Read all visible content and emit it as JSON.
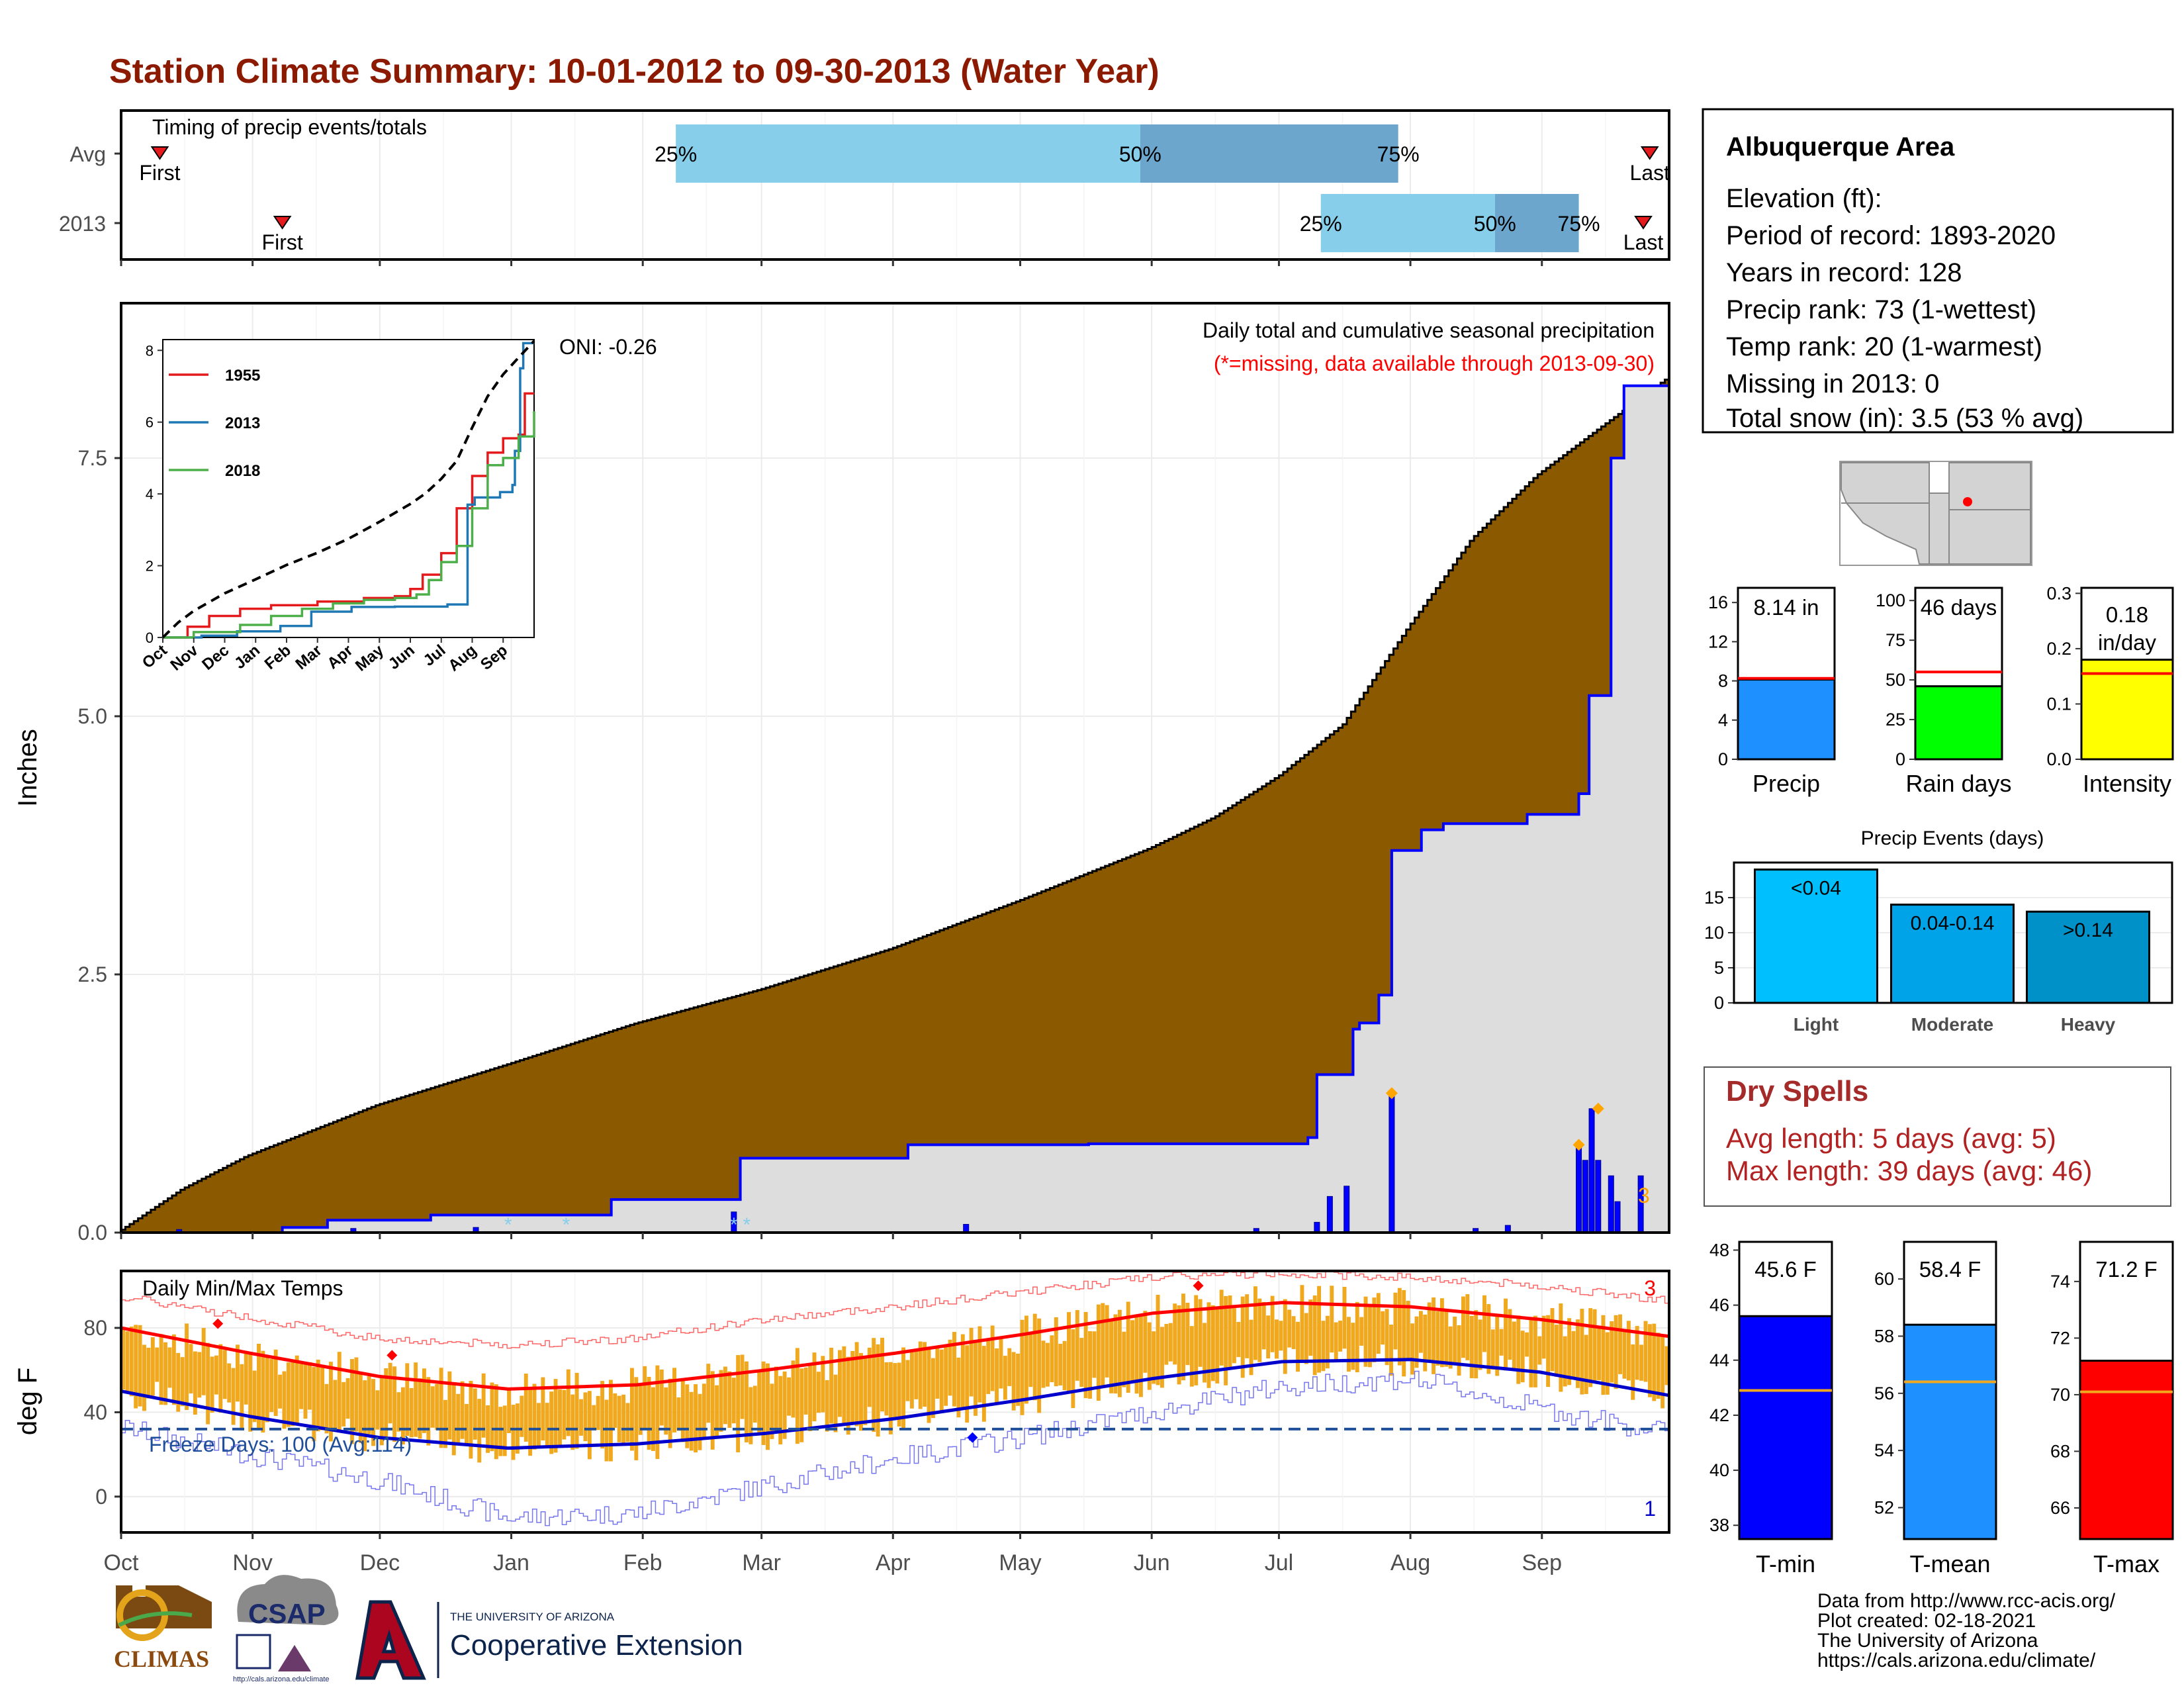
{
  "page": {
    "title": "Station Climate Summary: 10-01-2012 to 09-30-2013 (Water Year)",
    "footer": [
      "Data from http://www.rcc-acis.org/",
      "Plot created: 02-18-2021",
      "The University of Arizona",
      "https://cals.arizona.edu/climate/"
    ],
    "logos": {
      "climas": "CLIMAS",
      "csap": "CSAP",
      "ua_small": "THE UNIVERSITY OF ARIZONA",
      "ua_big": "Cooperative Extension",
      "csap_url": "http://cals.arizona.edu/climate"
    }
  },
  "chart_data": [
    {
      "type": "timing",
      "title": "Timing of precip events/totals",
      "rows": [
        {
          "label": "Avg",
          "first_month": 0.3,
          "q25_month": 4.3,
          "q50_month": 7.9,
          "q75_month": 9.9,
          "last_month": 11.85,
          "first_label": "First",
          "last_label": "Last"
        },
        {
          "label": "2013",
          "first_month": 1.25,
          "q25_month": 9.3,
          "q50_month": 10.65,
          "q75_month": 11.3,
          "last_month": 11.8,
          "first_label": "First",
          "last_label": "Last"
        }
      ],
      "pct_labels": [
        "25%",
        "50%",
        "75%"
      ],
      "colors": {
        "outer": "#87CEEB",
        "inner": "#6CA6CD",
        "marker": "#E41A1C"
      }
    },
    {
      "type": "area",
      "ylabel": "Inches",
      "yticks": [
        0.0,
        2.5,
        5.0,
        7.5
      ],
      "ytick_labels": [
        "0.0",
        "2.5",
        "5.0",
        "7.5"
      ],
      "ylim": [
        0,
        9.0
      ],
      "annotations": {
        "oni": "ONI: -0.26",
        "desc": "Daily total and cumulative seasonal precipitation",
        "missing": "(*=missing, data available through 2013-09-30)",
        "events_count": "3"
      },
      "avg_cumulative": {
        "x_month": [
          0,
          0.5,
          1,
          2,
          3,
          4,
          5,
          6,
          7,
          8,
          8.5,
          9,
          9.5,
          10,
          10.5,
          11,
          11.5,
          12
        ],
        "y": [
          0,
          0.42,
          0.74,
          1.23,
          1.62,
          2.02,
          2.36,
          2.75,
          3.22,
          3.72,
          4.02,
          4.42,
          4.92,
          5.85,
          6.72,
          7.33,
          7.8,
          8.26
        ]
      },
      "observed_cumulative": {
        "x_month": [
          0,
          1.25,
          1.6,
          2.4,
          3.8,
          4.8,
          6.1,
          7.5,
          9.2,
          9.27,
          9.55,
          9.6,
          9.75,
          9.85,
          10.08,
          10.25,
          10.9,
          11.3,
          11.38,
          11.55,
          11.65,
          12
        ],
        "y": [
          0.0,
          0.05,
          0.12,
          0.17,
          0.32,
          0.72,
          0.85,
          0.86,
          0.92,
          1.53,
          1.97,
          2.03,
          2.3,
          3.7,
          3.9,
          3.96,
          4.05,
          4.25,
          5.2,
          7.5,
          8.2,
          8.2
        ]
      },
      "daily_bars": {
        "x_month": [
          9.27,
          9.37,
          9.5,
          9.85,
          11.3,
          11.35,
          11.4,
          11.45,
          11.55,
          11.6,
          4.75,
          0.45,
          1.8,
          2.75,
          6.55,
          8.8,
          10.5,
          10.75,
          11.78
        ],
        "y": [
          0.1,
          0.35,
          0.45,
          1.35,
          0.85,
          0.7,
          1.2,
          0.7,
          0.55,
          0.3,
          0.2,
          0.03,
          0.04,
          0.05,
          0.08,
          0.04,
          0.04,
          0.07,
          0.55
        ]
      },
      "highlight_points": {
        "x_month": [
          9.85,
          11.3,
          11.45
        ],
        "y": [
          1.35,
          0.85,
          1.2
        ]
      },
      "missing_marks_month": [
        3.0,
        3.45,
        4.75,
        4.85
      ],
      "colors": {
        "avg_fill": "#8B5A00",
        "obs_fill": "#DDDDDD",
        "obs_line": "#0000FF",
        "highlight": "#FFA500",
        "missing": "#87CEEB"
      }
    },
    {
      "type": "line",
      "title": "inset",
      "x_tick_labels": [
        "Oct",
        "Nov",
        "Dec",
        "Jan",
        "Feb",
        "Mar",
        "Apr",
        "May",
        "Jun",
        "Jul",
        "Aug",
        "Sep"
      ],
      "yticks": [
        0,
        2,
        4,
        6,
        8
      ],
      "ylim": [
        0,
        8.3
      ],
      "series": [
        {
          "name": "1955",
          "color": "#E41A1C",
          "x_month": [
            0,
            0.8,
            1.5,
            2.5,
            3.5,
            5.0,
            6.5,
            7.5,
            8.0,
            8.4,
            9.0,
            9.5,
            10.0,
            10.5,
            11.0,
            11.5,
            11.7,
            12
          ],
          "y": [
            0,
            0.3,
            0.6,
            0.8,
            0.9,
            1.0,
            1.1,
            1.15,
            1.35,
            1.75,
            2.35,
            3.6,
            4.5,
            5.15,
            5.55,
            5.65,
            6.8,
            6.8
          ]
        },
        {
          "name": "2013",
          "color": "#1F78B4",
          "x_month": [
            0,
            1.25,
            2.4,
            3.8,
            4.8,
            6.1,
            7.5,
            9.2,
            9.85,
            10.08,
            10.9,
            11.3,
            11.38,
            11.55,
            11.65,
            12
          ],
          "y": [
            0,
            0.05,
            0.17,
            0.32,
            0.72,
            0.85,
            0.86,
            0.92,
            3.7,
            3.9,
            4.05,
            4.25,
            5.2,
            7.5,
            8.2,
            8.2
          ]
        },
        {
          "name": "2018",
          "color": "#4DAF4A",
          "x_month": [
            0,
            1.0,
            2.5,
            3.5,
            4.5,
            5.5,
            6.5,
            7.5,
            8.2,
            8.6,
            9.0,
            9.5,
            10.0,
            10.5,
            11.0,
            11.5,
            12
          ],
          "y": [
            0,
            0.15,
            0.35,
            0.6,
            0.8,
            0.95,
            1.05,
            1.1,
            1.2,
            1.6,
            2.1,
            2.55,
            3.6,
            4.8,
            5.0,
            5.6,
            6.3
          ]
        },
        {
          "name": "",
          "color": "#000000",
          "dashed": true,
          "x_month": [
            0,
            0.5,
            1,
            2,
            3,
            4,
            5,
            6,
            7,
            8,
            8.5,
            9,
            9.5,
            10,
            10.5,
            11,
            11.5,
            12
          ],
          "y": [
            0,
            0.42,
            0.74,
            1.23,
            1.62,
            2.02,
            2.36,
            2.75,
            3.22,
            3.72,
            4.02,
            4.42,
            4.92,
            5.85,
            6.72,
            7.33,
            7.8,
            8.26
          ]
        }
      ]
    },
    {
      "type": "line",
      "title": "Daily Min/Max Temps",
      "ylabel": "deg F",
      "yticks": [
        0,
        40,
        80
      ],
      "ylim": [
        -17,
        107
      ],
      "x_tick_labels": [
        "Oct",
        "Nov",
        "Dec",
        "Jan",
        "Feb",
        "Mar",
        "Apr",
        "May",
        "Jun",
        "Jul",
        "Aug",
        "Sep"
      ],
      "freeze_line": 32,
      "freeze_label": "Freeze Days: 100 (Avg:114)",
      "count_max": "3",
      "count_min": "1",
      "avg_max": {
        "x_month": [
          0,
          1,
          2,
          3,
          4,
          5,
          6,
          7,
          8,
          9,
          10,
          11,
          12
        ],
        "y": [
          80,
          68,
          57,
          51,
          53,
          60,
          68,
          77,
          87,
          92,
          90,
          84,
          76
        ]
      },
      "avg_min": {
        "x_month": [
          0,
          1,
          2,
          3,
          4,
          5,
          6,
          7,
          8,
          9,
          10,
          11,
          12
        ],
        "y": [
          50,
          38,
          28,
          23,
          25,
          30,
          37,
          46,
          56,
          64,
          65,
          59,
          48
        ]
      },
      "record_max": {
        "x_month": [
          0,
          1,
          2,
          3,
          4,
          5,
          6,
          7,
          8,
          9,
          10,
          11,
          12
        ],
        "y": [
          95,
          85,
          75,
          72,
          75,
          84,
          90,
          97,
          104,
          106,
          104,
          100,
          93
        ]
      },
      "record_min": {
        "x_month": [
          0,
          1,
          2,
          3,
          4,
          5,
          6,
          7,
          8,
          9,
          10,
          11,
          12
        ],
        "y": [
          33,
          20,
          8,
          -10,
          -8,
          5,
          18,
          28,
          40,
          52,
          56,
          42,
          30
        ]
      },
      "max_markers": [
        {
          "x_month": 0.75,
          "y": 82
        },
        {
          "x_month": 2.1,
          "y": 67
        },
        {
          "x_month": 8.35,
          "y": 100
        }
      ],
      "min_markers": [
        {
          "x_month": 6.6,
          "y": 28
        }
      ],
      "colors": {
        "bars": "#F0A81E",
        "avg_max": "#FF0000",
        "avg_min": "#0000CC",
        "record_max": "#FF6666",
        "record_min": "#7777EE",
        "freeze": "#1F4E9A"
      }
    },
    {
      "type": "bar",
      "title": "Precip",
      "categories": [
        "Precip"
      ],
      "values": [
        8.14
      ],
      "avg": 8.26,
      "label": "8.14 in",
      "ylim": [
        0,
        17.5
      ],
      "yticks": [
        0,
        4,
        8,
        12,
        16
      ],
      "color": "#1E90FF"
    },
    {
      "type": "bar",
      "title": "Rain days",
      "categories": [
        "Rain days"
      ],
      "values": [
        46
      ],
      "avg": 55,
      "label": "46 days",
      "ylim": [
        0,
        108
      ],
      "yticks": [
        0,
        25,
        50,
        75,
        100
      ],
      "color": "#00FF00"
    },
    {
      "type": "bar",
      "title": "Intensity",
      "categories": [
        "Intensity"
      ],
      "values": [
        0.18
      ],
      "avg": 0.155,
      "label": [
        "0.18",
        "in/day"
      ],
      "ylim": [
        0,
        0.31
      ],
      "yticks": [
        0.0,
        0.1,
        0.2,
        0.3
      ],
      "ytick_labels": [
        "0.0",
        "0.1",
        "0.2",
        "0.3"
      ],
      "color": "#FFFF00"
    },
    {
      "type": "bar",
      "title": "Precip Events (days)",
      "categories": [
        "Light",
        "Moderate",
        "Heavy"
      ],
      "values": [
        19,
        14,
        13
      ],
      "bar_labels": [
        "<0.04",
        "0.04-0.14",
        ">0.14"
      ],
      "ylim": [
        0,
        20
      ],
      "yticks": [
        0,
        5,
        10,
        15
      ],
      "colors": [
        "#00BFFF",
        "#00A2E8",
        "#0091C8"
      ]
    },
    {
      "type": "bar",
      "title": "T-min",
      "categories": [
        "T-min"
      ],
      "values": [
        45.6
      ],
      "avg": 42.9,
      "label": "45.6 F",
      "ylim": [
        37.5,
        48.3
      ],
      "yticks": [
        38,
        40,
        42,
        44,
        46,
        48
      ],
      "color": "#0000FF"
    },
    {
      "type": "bar",
      "title": "T-mean",
      "categories": [
        "T-mean"
      ],
      "values": [
        58.4
      ],
      "avg": 56.4,
      "label": "58.4 F",
      "ylim": [
        50.9,
        61.3
      ],
      "yticks": [
        52,
        54,
        56,
        58,
        60
      ],
      "color": "#1E90FF"
    },
    {
      "type": "bar",
      "title": "T-max",
      "categories": [
        "T-max"
      ],
      "values": [
        71.2
      ],
      "avg": 70.1,
      "label": "71.2 F",
      "ylim": [
        64.9,
        75.4
      ],
      "yticks": [
        66,
        68,
        70,
        72,
        74
      ],
      "color": "#FF0000"
    }
  ],
  "info": {
    "station": "Albuquerque Area",
    "lines": [
      "Elevation (ft):",
      "Period of record: 1893-2020",
      "Years in record: 128",
      "Precip rank: 73 (1-wettest)",
      "Temp rank: 20 (1-warmest)",
      "Missing in 2013: 0",
      "Total snow (in): 3.5 (53 % avg)"
    ]
  },
  "dry_spells": {
    "title": "Dry Spells",
    "lines": [
      "Avg length: 5 days (avg: 5)",
      "Max length: 39 days (avg: 46)"
    ]
  }
}
